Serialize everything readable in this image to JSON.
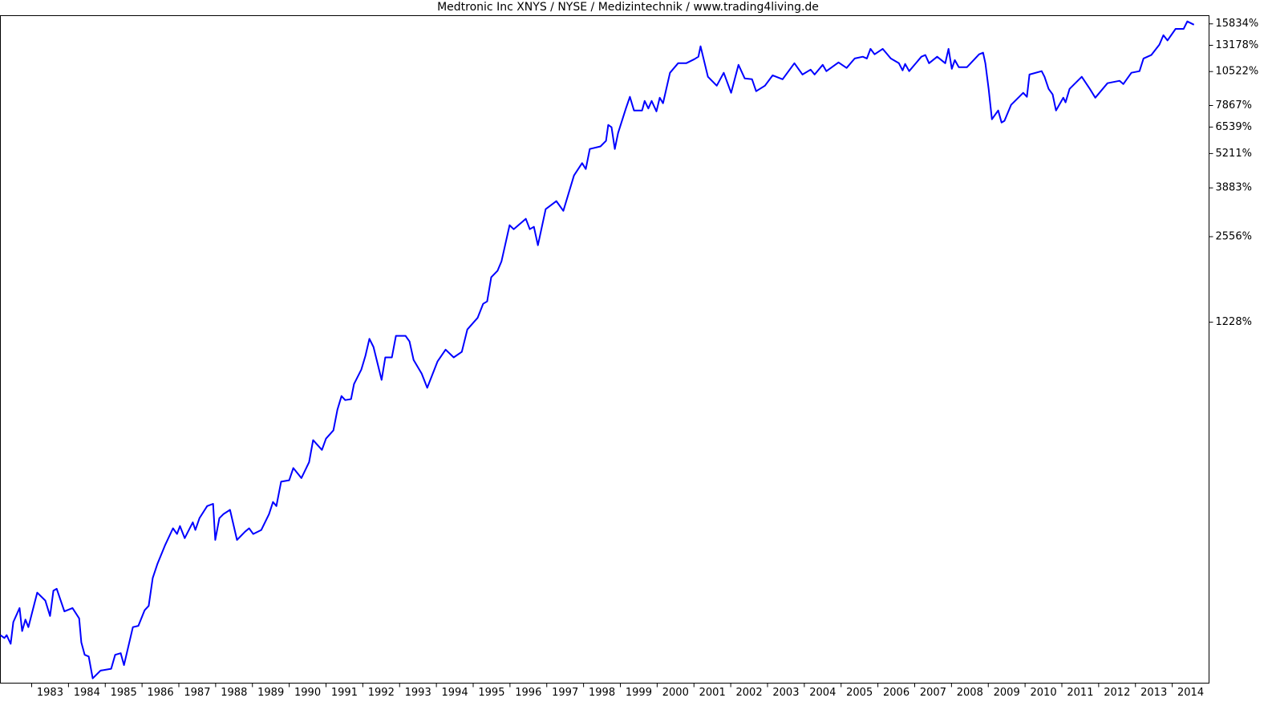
{
  "chart_data": {
    "type": "line",
    "title": "Medtronic Inc XNYS / NYSE / Medizintechnik / www.trading4living.de",
    "x": [
      1982.15,
      1982.26,
      1982.32,
      1982.43,
      1982.5,
      1982.67,
      1982.74,
      1982.83,
      1982.91,
      1983.15,
      1983.37,
      1983.5,
      1983.59,
      1983.68,
      1983.89,
      1984.11,
      1984.29,
      1984.35,
      1984.44,
      1984.55,
      1984.66,
      1984.87,
      1985.16,
      1985.27,
      1985.42,
      1985.51,
      1985.75,
      1985.9,
      1986.07,
      1986.18,
      1986.29,
      1986.42,
      1986.62,
      1986.84,
      1986.95,
      1987.03,
      1987.16,
      1987.38,
      1987.45,
      1987.56,
      1987.77,
      1987.93,
      1987.99,
      1988.1,
      1988.21,
      1988.39,
      1988.58,
      1988.8,
      1988.91,
      1989.02,
      1989.24,
      1989.45,
      1989.56,
      1989.65,
      1989.78,
      1990.0,
      1990.11,
      1990.33,
      1990.54,
      1990.65,
      1990.89,
      1991.0,
      1991.2,
      1991.31,
      1991.42,
      1991.52,
      1991.68,
      1991.76,
      1991.96,
      1992.07,
      1992.18,
      1992.29,
      1992.51,
      1992.61,
      1992.79,
      1992.9,
      1993.16,
      1993.27,
      1993.38,
      1993.6,
      1993.75,
      1994.03,
      1994.25,
      1994.47,
      1994.69,
      1994.84,
      1995.12,
      1995.27,
      1995.38,
      1995.49,
      1995.66,
      1995.77,
      1995.99,
      1996.1,
      1996.43,
      1996.54,
      1996.65,
      1996.76,
      1996.97,
      1997.26,
      1997.45,
      1997.74,
      1997.96,
      1998.06,
      1998.17,
      1998.46,
      1998.61,
      1998.67,
      1998.76,
      1998.85,
      1998.94,
      1999.15,
      1999.26,
      1999.37,
      1999.59,
      1999.66,
      1999.76,
      1999.85,
      1999.98,
      2000.07,
      2000.16,
      2000.35,
      2000.57,
      2000.79,
      2001.01,
      2001.12,
      2001.18,
      2001.38,
      2001.62,
      2001.81,
      2002.01,
      2002.21,
      2002.38,
      2002.58,
      2002.69,
      2002.93,
      2003.14,
      2003.41,
      2003.73,
      2003.95,
      2004.17,
      2004.28,
      2004.5,
      2004.6,
      2004.93,
      2005.15,
      2005.37,
      2005.59,
      2005.7,
      2005.8,
      2005.91,
      2006.13,
      2006.35,
      2006.57,
      2006.67,
      2006.74,
      2006.85,
      2007.18,
      2007.29,
      2007.39,
      2007.61,
      2007.83,
      2007.92,
      2008.01,
      2008.09,
      2008.2,
      2008.42,
      2008.75,
      2008.86,
      2008.92,
      2009.01,
      2009.1,
      2009.27,
      2009.36,
      2009.44,
      2009.62,
      2009.84,
      2009.95,
      2010.05,
      2010.12,
      2010.45,
      2010.53,
      2010.64,
      2010.75,
      2010.84,
      2011.04,
      2011.1,
      2011.21,
      2011.54,
      2011.76,
      2011.91,
      2012.24,
      2012.57,
      2012.67,
      2012.89,
      2013.11,
      2013.22,
      2013.43,
      2013.65,
      2013.76,
      2013.87,
      2014.09,
      2014.31,
      2014.41,
      2014.59
    ],
    "values": [
      84,
      82,
      84,
      78,
      94,
      106,
      87,
      96,
      90,
      121,
      113,
      99,
      123,
      125,
      103,
      106,
      97,
      79,
      71,
      70,
      58,
      62,
      63,
      71,
      72,
      65,
      90,
      91,
      104,
      108,
      137,
      155,
      181,
      210,
      200,
      214,
      193,
      221,
      207,
      229,
      254,
      259,
      190,
      229,
      237,
      246,
      190,
      204,
      210,
      200,
      207,
      237,
      263,
      254,
      313,
      317,
      352,
      323,
      370,
      447,
      411,
      453,
      486,
      580,
      652,
      630,
      635,
      723,
      818,
      920,
      1065,
      993,
      749,
      908,
      908,
      1093,
      1093,
      1041,
      889,
      790,
      700,
      877,
      971,
      908,
      952,
      1154,
      1275,
      1438,
      1468,
      1805,
      1907,
      2070,
      2820,
      2725,
      2980,
      2725,
      2782,
      2375,
      3236,
      3466,
      3190,
      4320,
      4800,
      4563,
      5420,
      5540,
      5810,
      6660,
      6530,
      5420,
      6220,
      7670,
      8470,
      7540,
      7540,
      8180,
      7670,
      8180,
      7480,
      8410,
      8020,
      10410,
      11300,
      11300,
      11700,
      11950,
      13070,
      10060,
      9320,
      10410,
      8770,
      11150,
      9920,
      9850,
      8890,
      9320,
      10190,
      9850,
      11300,
      10260,
      10700,
      10260,
      11150,
      10560,
      11380,
      10850,
      11770,
      11950,
      11770,
      12780,
      12200,
      12780,
      11770,
      11300,
      10630,
      11230,
      10560,
      11950,
      12120,
      11300,
      11950,
      11300,
      12780,
      10770,
      11610,
      10920,
      10920,
      12200,
      12370,
      11300,
      9070,
      6990,
      7540,
      6800,
      6900,
      7910,
      8470,
      8770,
      8470,
      10260,
      10560,
      10060,
      9070,
      8650,
      7540,
      8410,
      8080,
      9070,
      10060,
      9070,
      8410,
      9520,
      9720,
      9450,
      10410,
      10560,
      11770,
      12120,
      13260,
      14370,
      13740,
      15170,
      15170,
      16170,
      15720
    ],
    "color": "#0000ff",
    "log": true,
    "xlim": [
      1982.15,
      2015.0
    ],
    "ylim": [
      55.7,
      16990
    ],
    "xticks": [
      1983,
      1984,
      1985,
      1986,
      1987,
      1988,
      1989,
      1990,
      1991,
      1992,
      1993,
      1994,
      1995,
      1996,
      1997,
      1998,
      1999,
      2000,
      2001,
      2002,
      2003,
      2004,
      2005,
      2006,
      2007,
      2008,
      2009,
      2010,
      2011,
      2012,
      2013,
      2014
    ],
    "yticks": [
      {
        "value": 1228,
        "label": "1228%"
      },
      {
        "value": 2556,
        "label": "2556%"
      },
      {
        "value": 3883,
        "label": "3883%"
      },
      {
        "value": 5211,
        "label": "5211%"
      },
      {
        "value": 6539,
        "label": "6539%"
      },
      {
        "value": 7867,
        "label": "7867%"
      },
      {
        "value": 10522,
        "label": "10522%"
      },
      {
        "value": 13178,
        "label": "13178%"
      },
      {
        "value": 15834,
        "label": "15834%"
      }
    ]
  }
}
